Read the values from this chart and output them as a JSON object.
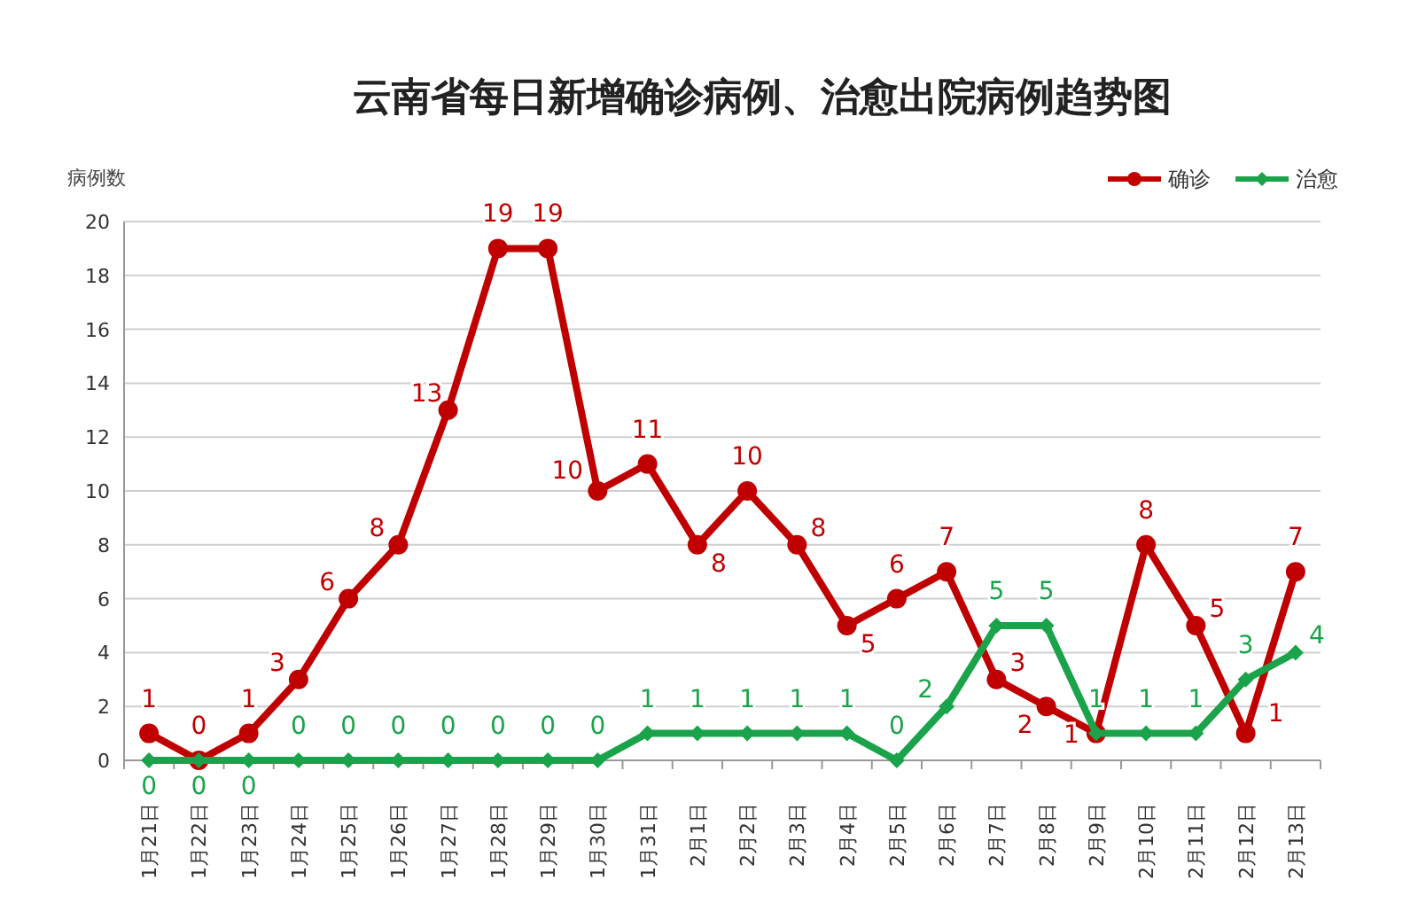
{
  "chart_data": {
    "type": "line",
    "title": "云南省每日新增确诊病例、治愈出院病例趋势图",
    "ylabel": "病例数",
    "categories": [
      "1月21日",
      "1月22日",
      "1月23日",
      "1月24日",
      "1月25日",
      "1月26日",
      "1月27日",
      "1月28日",
      "1月29日",
      "1月30日",
      "1月31日",
      "2月1日",
      "2月2日",
      "2月3日",
      "2月4日",
      "2月5日",
      "2月6日",
      "2月7日",
      "2月8日",
      "2月9日",
      "2月10日",
      "2月11日",
      "2月12日",
      "2月13日"
    ],
    "series": [
      {
        "name": "确诊",
        "color": "#c00000",
        "marker": "circle",
        "values": [
          1,
          0,
          1,
          3,
          6,
          8,
          13,
          19,
          19,
          10,
          11,
          8,
          10,
          8,
          5,
          6,
          7,
          3,
          2,
          1,
          8,
          5,
          1,
          7
        ]
      },
      {
        "name": "治愈",
        "color": "#1aa34a",
        "marker": "diamond",
        "values": [
          0,
          0,
          0,
          0,
          0,
          0,
          0,
          0,
          0,
          0,
          1,
          1,
          1,
          1,
          1,
          0,
          2,
          5,
          5,
          1,
          1,
          1,
          3,
          4
        ]
      }
    ],
    "ylim": [
      0,
      20
    ],
    "yticks": [
      0,
      2,
      4,
      6,
      8,
      10,
      12,
      14,
      16,
      18,
      20
    ],
    "grid": "y",
    "legend": "top right",
    "data_labels": true
  }
}
